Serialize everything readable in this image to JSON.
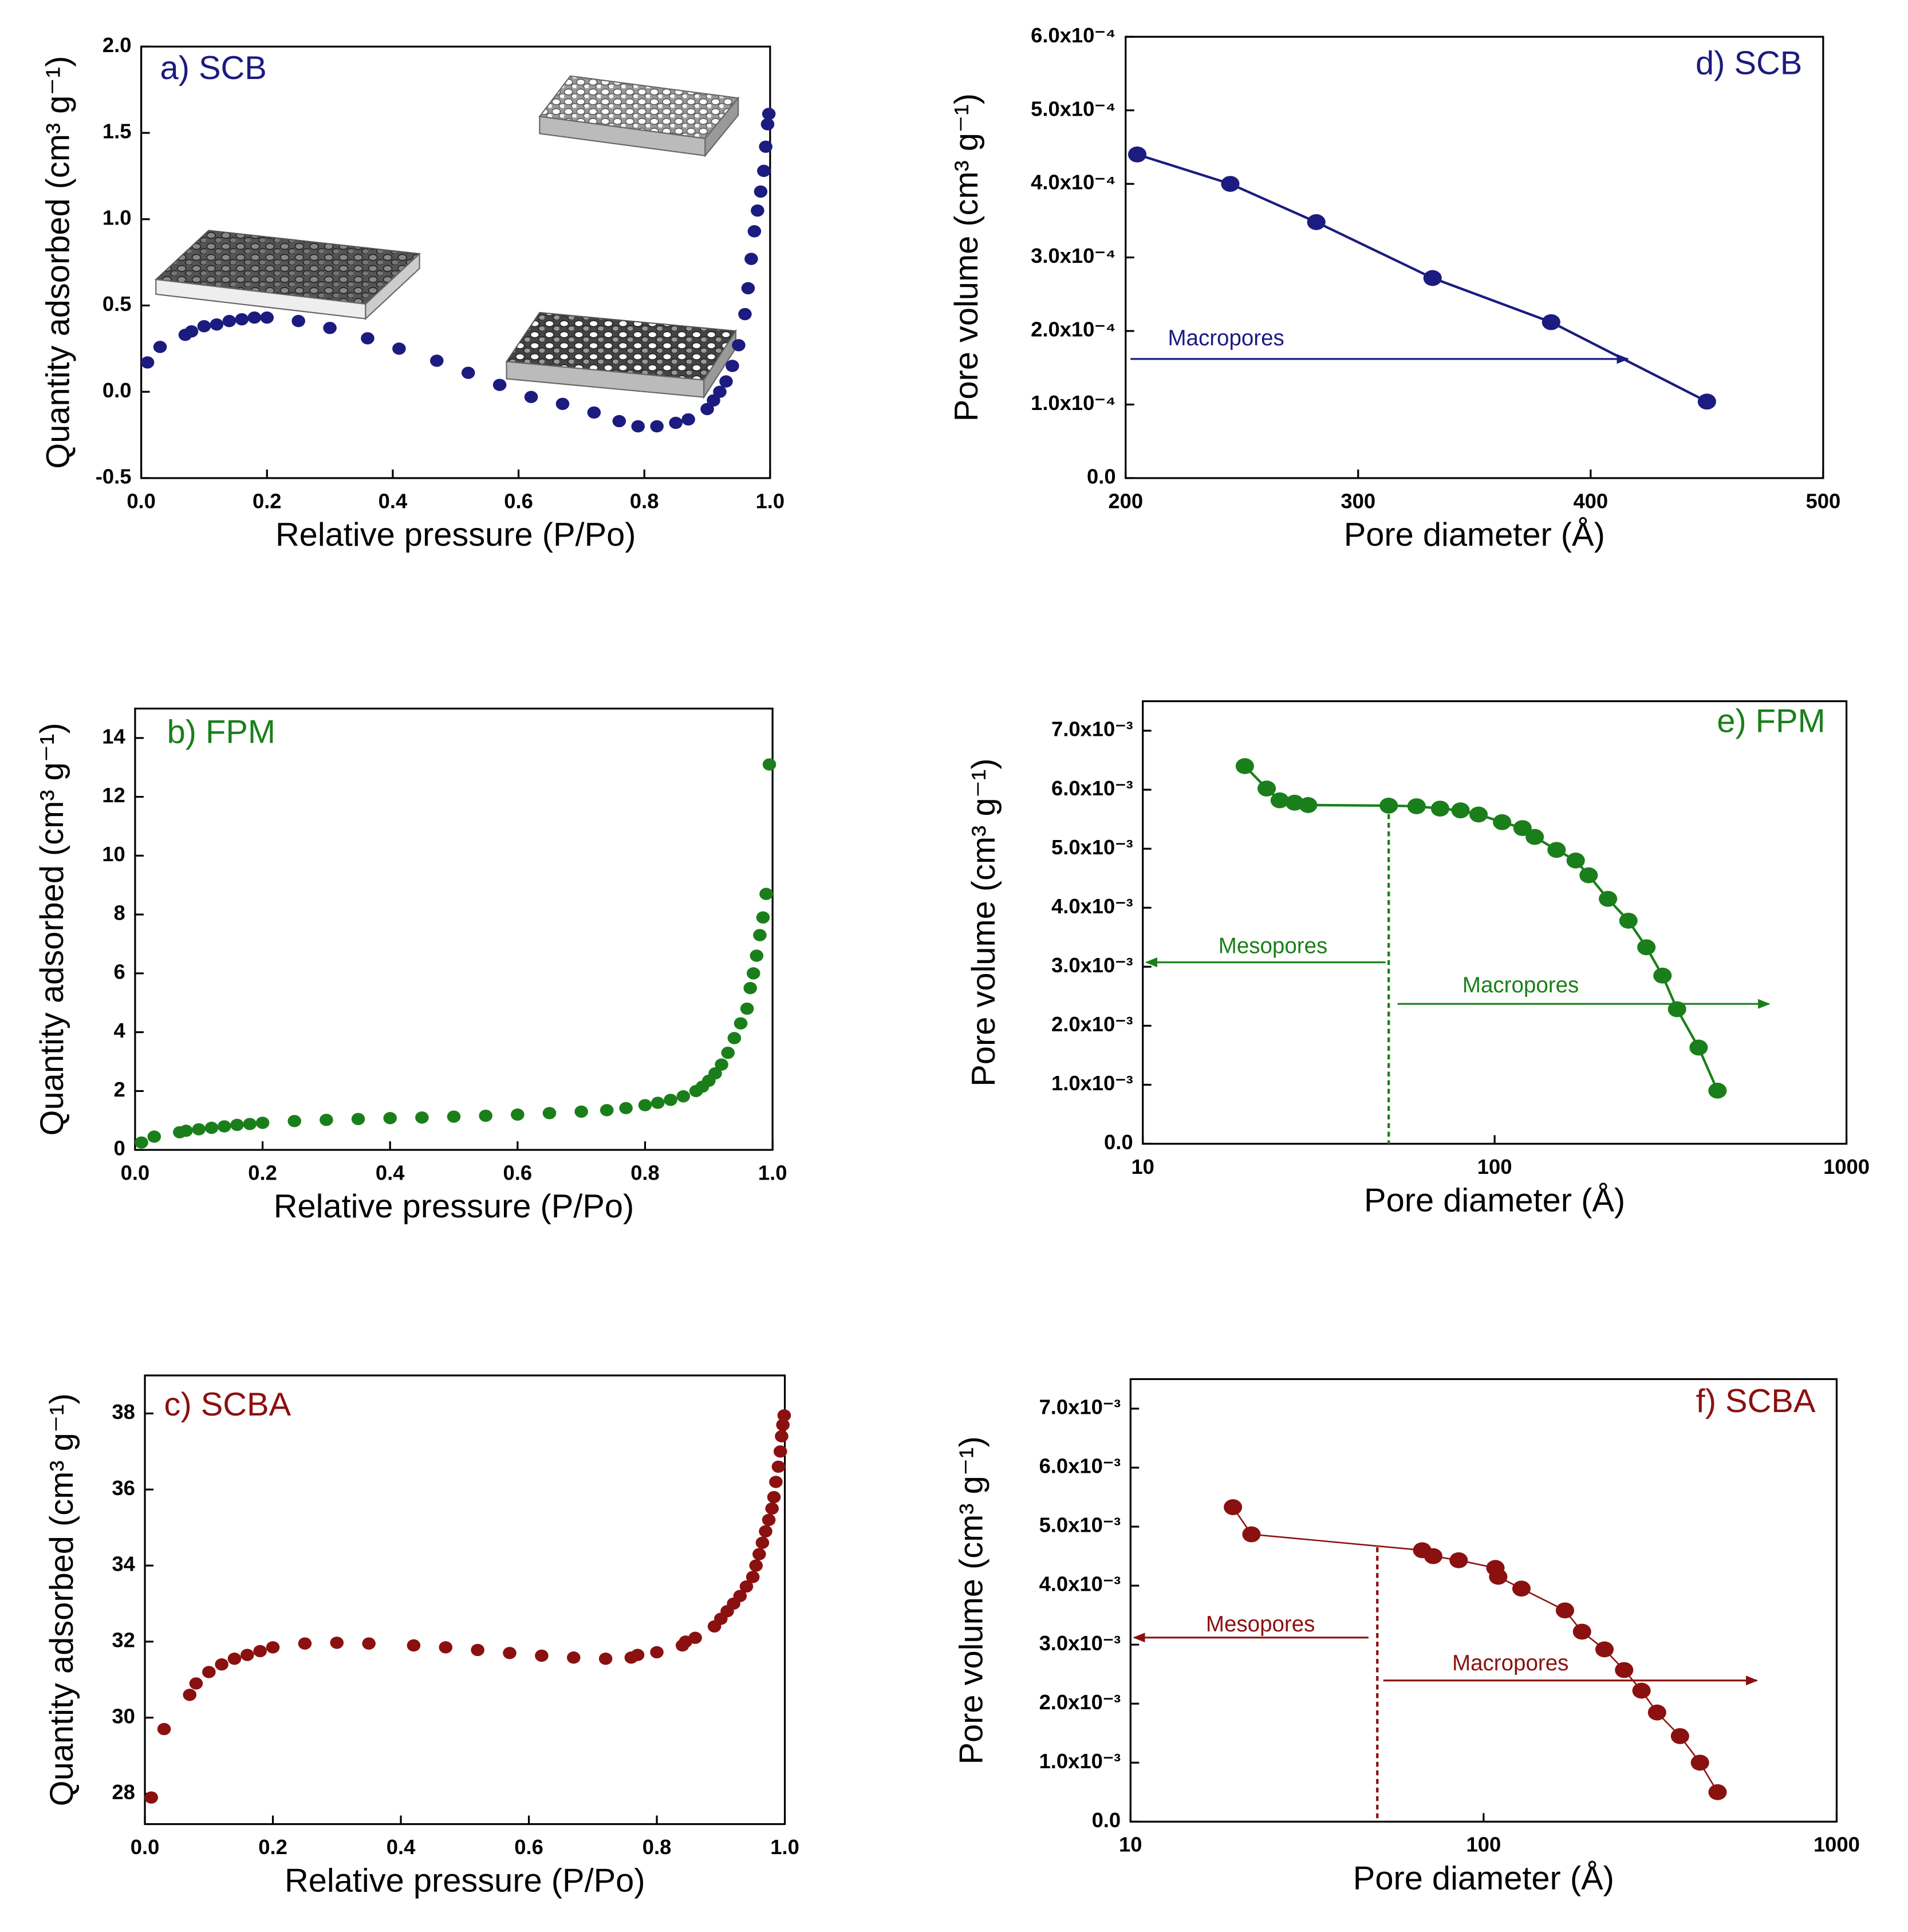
{
  "chart_data": [
    {
      "type": "scatter",
      "title": "a) SCB",
      "xlabel": "Relative pressure (P/Po)",
      "ylabel": "Quantity adsorbed (cm³ g⁻¹)",
      "color": "#1b1b80",
      "xlim": [
        0,
        1
      ],
      "xticks": [
        {
          "value": 0,
          "label": "0.0"
        },
        0.2,
        0.4,
        0.6,
        0.8,
        {
          "value": 1,
          "label": "1.0"
        }
      ],
      "ylim": [
        -0.5,
        2
      ],
      "yticks": [
        -0.5,
        {
          "value": 0,
          "label": "0.0"
        },
        0.5,
        {
          "value": 1,
          "label": "1.0"
        },
        1.5,
        {
          "value": 2,
          "label": "2.0"
        }
      ],
      "x": [
        0.01,
        0.03,
        0.07,
        0.08,
        0.1,
        0.12,
        0.14,
        0.16,
        0.18,
        0.2,
        0.25,
        0.3,
        0.36,
        0.41,
        0.47,
        0.52,
        0.57,
        0.62,
        0.67,
        0.72,
        0.76,
        0.79,
        0.82,
        0.85,
        0.87,
        0.9,
        0.91,
        0.92,
        0.93,
        0.94,
        0.95,
        0.96,
        0.965,
        0.97,
        0.975,
        0.98,
        0.985,
        0.99,
        0.993,
        0.996,
        0.998
      ],
      "values": [
        0.17,
        0.26,
        0.33,
        0.35,
        0.38,
        0.39,
        0.41,
        0.42,
        0.43,
        0.43,
        0.41,
        0.37,
        0.31,
        0.25,
        0.18,
        0.11,
        0.04,
        -0.03,
        -0.07,
        -0.12,
        -0.17,
        -0.2,
        -0.2,
        -0.18,
        -0.16,
        -0.1,
        -0.05,
        0,
        0.06,
        0.15,
        0.27,
        0.45,
        0.6,
        0.77,
        0.93,
        1.05,
        1.16,
        1.28,
        1.42,
        1.55,
        1.61
      ]
    },
    {
      "type": "line",
      "title": "d) SCB",
      "xlabel": "Pore diameter (Å)",
      "ylabel": "Pore volume (cm³ g⁻¹)",
      "color": "#1b1b80",
      "xlim": [
        200,
        500
      ],
      "xticks": [
        200,
        300,
        400,
        500
      ],
      "ylim": [
        0,
        0.0006
      ],
      "yticks": [
        {
          "value": 0,
          "label": "0.0"
        },
        {
          "value": 0.0001,
          "label": "1.0x10⁻⁴"
        },
        {
          "value": 0.0002,
          "label": "2.0x10⁻⁴"
        },
        {
          "value": 0.0003,
          "label": "3.0x10⁻⁴"
        },
        {
          "value": 0.0004,
          "label": "4.0x10⁻⁴"
        },
        {
          "value": 0.0005,
          "label": "5.0x10⁻⁴"
        },
        {
          "value": 0.0006,
          "label": "6.0x10⁻⁴"
        }
      ],
      "x": [
        205,
        245,
        282,
        332,
        383,
        450
      ],
      "values": [
        0.00044,
        0.0004,
        0.000348,
        0.000272,
        0.000212,
        0.000104
      ],
      "annotations": [
        {
          "text": "Macropores",
          "direction": "right"
        }
      ]
    },
    {
      "type": "scatter",
      "title": "b) FPM",
      "xlabel": "Relative pressure (P/Po)",
      "ylabel": "Quantity adsorbed (cm³ g⁻¹)",
      "color": "#1a7f1a",
      "xlim": [
        0,
        1
      ],
      "xticks": [
        {
          "value": 0,
          "label": "0.0"
        },
        0.2,
        0.4,
        0.6,
        0.8,
        {
          "value": 1,
          "label": "1.0"
        }
      ],
      "ylim": [
        0,
        15
      ],
      "yticks": [
        0,
        2,
        4,
        6,
        8,
        10,
        12,
        14
      ],
      "x": [
        0.01,
        0.03,
        0.07,
        0.08,
        0.1,
        0.12,
        0.14,
        0.16,
        0.18,
        0.2,
        0.25,
        0.3,
        0.35,
        0.4,
        0.45,
        0.5,
        0.55,
        0.6,
        0.65,
        0.7,
        0.74,
        0.77,
        0.8,
        0.82,
        0.84,
        0.86,
        0.88,
        0.89,
        0.9,
        0.91,
        0.92,
        0.93,
        0.94,
        0.95,
        0.96,
        0.965,
        0.97,
        0.975,
        0.98,
        0.985,
        0.99,
        0.995
      ],
      "values": [
        0.25,
        0.45,
        0.6,
        0.65,
        0.7,
        0.75,
        0.8,
        0.85,
        0.88,
        0.92,
        0.98,
        1.02,
        1.05,
        1.08,
        1.1,
        1.13,
        1.16,
        1.2,
        1.25,
        1.3,
        1.35,
        1.42,
        1.52,
        1.6,
        1.7,
        1.82,
        2.0,
        2.15,
        2.35,
        2.6,
        2.9,
        3.3,
        3.8,
        4.3,
        4.8,
        5.5,
        6.0,
        6.6,
        7.3,
        7.9,
        8.7,
        13.1
      ]
    },
    {
      "type": "line",
      "title": "e) FPM",
      "xlabel": "Pore diameter (Å)",
      "ylabel": "Pore volume (cm³ g⁻¹)",
      "color": "#1a7f1a",
      "xlog": true,
      "xlim": [
        10,
        1000
      ],
      "xticks": [
        10,
        100,
        1000
      ],
      "ylim": [
        0,
        0.0075
      ],
      "yticks": [
        {
          "value": 0,
          "label": "0.0"
        },
        {
          "value": 0.001,
          "label": "1.0x10⁻³"
        },
        {
          "value": 0.002,
          "label": "2.0x10⁻³"
        },
        {
          "value": 0.003,
          "label": "3.0x10⁻³"
        },
        {
          "value": 0.004,
          "label": "4.0x10⁻³"
        },
        {
          "value": 0.005,
          "label": "5.0x10⁻³"
        },
        {
          "value": 0.006,
          "label": "6.0x10⁻³"
        },
        {
          "value": 0.007,
          "label": "7.0x10⁻³"
        }
      ],
      "x": [
        19.5,
        22.5,
        24.5,
        27,
        29.5,
        50,
        60,
        70,
        80,
        90,
        105,
        120,
        130,
        150,
        170,
        185,
        210,
        240,
        270,
        300,
        330,
        380,
        430
      ],
      "values": [
        0.0064,
        0.00602,
        0.00582,
        0.00578,
        0.00574,
        0.00573,
        0.00572,
        0.00568,
        0.00565,
        0.00558,
        0.00545,
        0.00535,
        0.0052,
        0.00498,
        0.0048,
        0.00455,
        0.00415,
        0.00378,
        0.00333,
        0.00285,
        0.00228,
        0.00163,
        0.0009
      ],
      "vline": {
        "x": 50,
        "y": 0.00573
      },
      "annotations": [
        {
          "text": "Mesopores",
          "direction": "left"
        },
        {
          "text": "Macropores",
          "direction": "right"
        }
      ]
    },
    {
      "type": "scatter",
      "title": "c) SCBA",
      "xlabel": "Relative pressure (P/Po)",
      "ylabel": "Quantity adsorbed (cm³ g⁻¹)",
      "color": "#8b1010",
      "xlim": [
        0,
        1
      ],
      "xticks": [
        {
          "value": 0,
          "label": "0.0"
        },
        0.2,
        0.4,
        0.6,
        0.8,
        {
          "value": 1,
          "label": "1.0"
        }
      ],
      "ylim": [
        27.2,
        39
      ],
      "yticks": [
        28,
        30,
        32,
        34,
        36,
        38
      ],
      "x": [
        0.01,
        0.03,
        0.07,
        0.08,
        0.1,
        0.12,
        0.14,
        0.16,
        0.18,
        0.2,
        0.25,
        0.3,
        0.35,
        0.42,
        0.47,
        0.52,
        0.57,
        0.62,
        0.67,
        0.72,
        0.76,
        0.77,
        0.8,
        0.84,
        0.845,
        0.86,
        0.89,
        0.9,
        0.91,
        0.92,
        0.93,
        0.94,
        0.95,
        0.955,
        0.96,
        0.965,
        0.97,
        0.975,
        0.98,
        0.983,
        0.986,
        0.99,
        0.993,
        0.995,
        0.997,
        0.999
      ],
      "values": [
        27.9,
        29.7,
        30.6,
        30.9,
        31.2,
        31.4,
        31.55,
        31.65,
        31.75,
        31.85,
        31.95,
        31.97,
        31.95,
        31.9,
        31.85,
        31.78,
        31.7,
        31.63,
        31.58,
        31.55,
        31.58,
        31.65,
        31.72,
        31.9,
        32.0,
        32.1,
        32.4,
        32.6,
        32.8,
        33.0,
        33.2,
        33.45,
        33.7,
        34.0,
        34.3,
        34.6,
        34.9,
        35.2,
        35.5,
        35.8,
        36.2,
        36.6,
        37.0,
        37.4,
        37.7,
        37.95
      ]
    },
    {
      "type": "line",
      "title": "f) SCBA",
      "xlabel": "Pore diameter (Å)",
      "ylabel": "Pore volume (cm³ g⁻¹)",
      "color": "#8b1010",
      "xlog": true,
      "xlim": [
        10,
        1000
      ],
      "xticks": [
        10,
        100,
        1000
      ],
      "ylim": [
        0,
        0.0075
      ],
      "yticks": [
        {
          "value": 0,
          "label": "0.0"
        },
        {
          "value": 0.001,
          "label": "1.0x10⁻³"
        },
        {
          "value": 0.002,
          "label": "2.0x10⁻³"
        },
        {
          "value": 0.003,
          "label": "3.0x10⁻³"
        },
        {
          "value": 0.004,
          "label": "4.0x10⁻³"
        },
        {
          "value": 0.005,
          "label": "5.0x10⁻³"
        },
        {
          "value": 0.006,
          "label": "6.0x10⁻³"
        },
        {
          "value": 0.007,
          "label": "7.0x10⁻³"
        }
      ],
      "x": [
        19.5,
        22,
        67,
        72,
        85,
        108,
        110,
        128,
        170,
        190,
        220,
        250,
        280,
        310,
        360,
        410,
        460
      ],
      "values": [
        0.00533,
        0.00487,
        0.0046,
        0.0045,
        0.00443,
        0.0043,
        0.00415,
        0.00395,
        0.00358,
        0.00322,
        0.00292,
        0.00257,
        0.00222,
        0.00185,
        0.00145,
        0.001,
        0.0005
      ],
      "vline": {
        "x": 50,
        "y": 0.00465
      },
      "annotations": [
        {
          "text": "Mesopores",
          "direction": "left"
        },
        {
          "text": "Macropores",
          "direction": "right"
        }
      ]
    }
  ]
}
